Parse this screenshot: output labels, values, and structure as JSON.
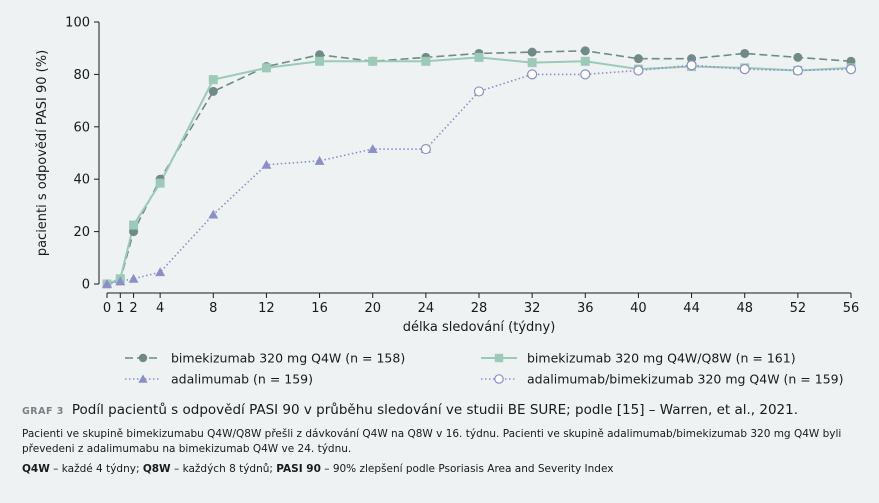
{
  "chart_data": {
    "type": "line",
    "title": "",
    "xlabel": "délka sledování (týdny)",
    "ylabel": "pacienti s odpovědí PASI 90 (%)",
    "xlim": [
      0,
      56
    ],
    "ylim": [
      0,
      100
    ],
    "x_ticks": [
      0,
      1,
      2,
      4,
      8,
      12,
      16,
      20,
      24,
      28,
      32,
      36,
      40,
      44,
      48,
      52,
      56
    ],
    "y_ticks": [
      0,
      20,
      40,
      60,
      80,
      100
    ],
    "grid": false,
    "series": [
      {
        "name": "bimekizumab 320 mg Q4W (n = 158)",
        "color": "#6f8a87",
        "line": "dashed",
        "marker": "circle-filled",
        "x": [
          0,
          1,
          2,
          4,
          8,
          12,
          16,
          20,
          24,
          28,
          32,
          36,
          40,
          44,
          48,
          52,
          56
        ],
        "y": [
          0,
          1.5,
          20,
          40,
          73.5,
          83,
          87.5,
          85,
          86.5,
          88,
          88.5,
          89,
          86,
          86,
          88,
          86.5,
          85
        ]
      },
      {
        "name": "bimekizumab 320 mg Q4W/Q8W (n = 161)",
        "color": "#9ccab8",
        "line": "solid",
        "marker": "square-filled",
        "x": [
          0,
          1,
          2,
          4,
          8,
          12,
          16,
          20,
          24,
          28,
          32,
          36,
          40,
          44,
          48,
          52,
          56
        ],
        "y": [
          0,
          2,
          22.5,
          38.5,
          78,
          82.5,
          85,
          85,
          85,
          86.5,
          84.5,
          85,
          82,
          83,
          82.5,
          81.5,
          82.5
        ]
      },
      {
        "name": "adalimumab (n = 159)",
        "color": "#8b8fc9",
        "line": "dotted",
        "marker": "triangle-filled",
        "x": [
          0,
          1,
          2,
          4,
          8,
          12,
          16,
          20,
          24
        ],
        "y": [
          0,
          1,
          2,
          4.5,
          26.5,
          45.5,
          47,
          51.5,
          51.5
        ]
      },
      {
        "name": "adalimumab/bimekizumab 320 mg Q4W (n = 159)",
        "color": "#8b8fc9",
        "line": "dotted",
        "marker": "circle-open",
        "x": [
          24,
          28,
          32,
          36,
          40,
          44,
          48,
          52,
          56
        ],
        "y": [
          51.5,
          73.5,
          80,
          80,
          81.5,
          83.5,
          82,
          81.5,
          82
        ]
      }
    ],
    "legend": "bottom, two columns"
  },
  "caption": {
    "label": "GRAF 3",
    "title": "Podíl pacientů s odpovědí PASI 90 v průběhu sledování ve studii BE SURE; podle [15] – Warren, et al., 2021.",
    "note": "Pacienti ve skupině bimekizumabu Q4W/Q8W přešli z dávkování Q4W na Q8W v 16. týdnu. Pacienti ve skupině adalimumab/bimekizumab 320 mg Q4W byli převedeni z adalimumabu na bimekizumab Q4W ve 24. týdnu.",
    "abbr": [
      {
        "term": "Q4W",
        "def": " – každé 4 týdny; "
      },
      {
        "term": "Q8W",
        "def": " – každých 8 týdnů; "
      },
      {
        "term": "PASI 90",
        "def": " – 90% zlepšení podle Psoriasis Area and Severity Index"
      }
    ]
  }
}
